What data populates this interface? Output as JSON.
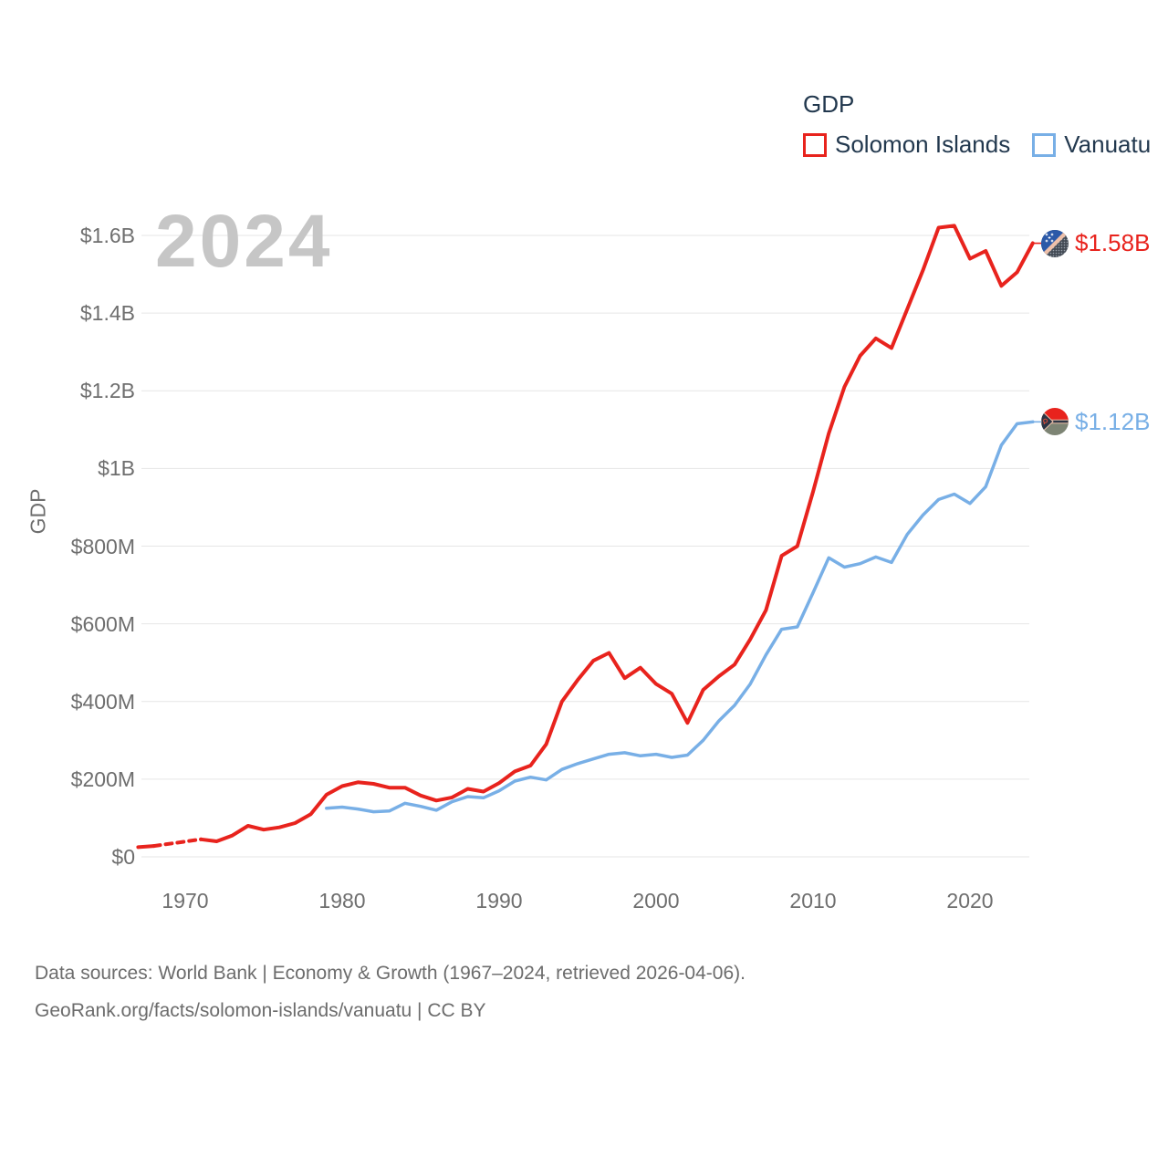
{
  "watermark": "2024",
  "legend": {
    "title": "GDP",
    "items": [
      {
        "label": "Solomon Islands",
        "color": "#e8231d"
      },
      {
        "label": "Vanuatu",
        "color": "#78afe6"
      }
    ]
  },
  "end_labels": [
    {
      "series": "Solomon Islands",
      "text": "$1.58B",
      "color": "#e8231d",
      "flag_icon": "solomon-islands-flag-icon"
    },
    {
      "series": "Vanuatu",
      "text": "$1.12B",
      "color": "#78afe6",
      "flag_icon": "vanuatu-flag-icon"
    }
  ],
  "footer": {
    "line1": "Data sources: World Bank | Economy & Growth (1967–2024, retrieved 2026-04-06).",
    "line2": "GeoRank.org/facts/solomon-islands/vanuatu | CC BY"
  },
  "chart_data": {
    "type": "line",
    "title": "GDP",
    "xlabel": "",
    "ylabel": "GDP",
    "units": "USD, values in millions",
    "grid": "horizontal",
    "legend_position": "top-right",
    "x_axis": {
      "range": [
        1967,
        2024
      ],
      "ticks": [
        1970,
        1980,
        1990,
        2000,
        2010,
        2020
      ]
    },
    "y_axis": {
      "range_millions": [
        0,
        1600
      ],
      "ticks": [
        {
          "value": 1600,
          "label": "$1.6B"
        },
        {
          "value": 1400,
          "label": "$1.4B"
        },
        {
          "value": 1200,
          "label": "$1.2B"
        },
        {
          "value": 1000,
          "label": "$1B"
        },
        {
          "value": 800,
          "label": "$800M"
        },
        {
          "value": 600,
          "label": "$600M"
        },
        {
          "value": 400,
          "label": "$400M"
        },
        {
          "value": 200,
          "label": "$200M"
        },
        {
          "value": 0,
          "label": "$0"
        }
      ]
    },
    "series": [
      {
        "name": "Solomon Islands",
        "color": "#e8231d",
        "stroke_width": 4,
        "end_value_label": "$1.58B",
        "note": "dashed segment = data gap 1969-1970",
        "segments": [
          {
            "style": "solid",
            "points": [
              [
                1967,
                25
              ],
              [
                1968,
                28
              ]
            ]
          },
          {
            "style": "dashed",
            "points": [
              [
                1968,
                28
              ],
              [
                1971,
                45
              ]
            ]
          },
          {
            "style": "solid",
            "points": [
              [
                1971,
                45
              ],
              [
                1972,
                40
              ],
              [
                1973,
                55
              ],
              [
                1974,
                80
              ],
              [
                1975,
                70
              ],
              [
                1976,
                76
              ],
              [
                1977,
                87
              ],
              [
                1978,
                110
              ],
              [
                1979,
                160
              ],
              [
                1980,
                182
              ],
              [
                1981,
                192
              ],
              [
                1982,
                188
              ],
              [
                1983,
                178
              ],
              [
                1984,
                178
              ],
              [
                1985,
                158
              ],
              [
                1986,
                145
              ],
              [
                1987,
                153
              ],
              [
                1988,
                175
              ],
              [
                1989,
                168
              ],
              [
                1990,
                190
              ],
              [
                1991,
                220
              ],
              [
                1992,
                235
              ],
              [
                1993,
                290
              ],
              [
                1994,
                400
              ],
              [
                1995,
                455
              ],
              [
                1996,
                505
              ],
              [
                1997,
                525
              ],
              [
                1998,
                460
              ],
              [
                1999,
                487
              ],
              [
                2000,
                445
              ],
              [
                2001,
                420
              ],
              [
                2002,
                345
              ],
              [
                2003,
                430
              ],
              [
                2004,
                465
              ],
              [
                2005,
                495
              ],
              [
                2006,
                560
              ],
              [
                2007,
                635
              ],
              [
                2008,
                775
              ],
              [
                2009,
                800
              ],
              [
                2010,
                940
              ],
              [
                2011,
                1090
              ],
              [
                2012,
                1210
              ],
              [
                2013,
                1290
              ],
              [
                2014,
                1335
              ],
              [
                2015,
                1310
              ],
              [
                2016,
                1410
              ],
              [
                2017,
                1510
              ],
              [
                2018,
                1620
              ],
              [
                2019,
                1625
              ],
              [
                2020,
                1540
              ],
              [
                2021,
                1560
              ],
              [
                2022,
                1470
              ],
              [
                2023,
                1505
              ],
              [
                2024,
                1580
              ]
            ]
          }
        ]
      },
      {
        "name": "Vanuatu",
        "color": "#78afe6",
        "stroke_width": 3.5,
        "end_value_label": "$1.12B",
        "segments": [
          {
            "style": "solid",
            "points": [
              [
                1979,
                125
              ],
              [
                1980,
                128
              ],
              [
                1981,
                123
              ],
              [
                1982,
                116
              ],
              [
                1983,
                118
              ],
              [
                1984,
                138
              ],
              [
                1985,
                130
              ],
              [
                1986,
                120
              ],
              [
                1987,
                142
              ],
              [
                1988,
                155
              ],
              [
                1989,
                152
              ],
              [
                1990,
                170
              ],
              [
                1991,
                195
              ],
              [
                1992,
                205
              ],
              [
                1993,
                198
              ],
              [
                1994,
                225
              ],
              [
                1995,
                240
              ],
              [
                1996,
                252
              ],
              [
                1997,
                264
              ],
              [
                1998,
                268
              ],
              [
                1999,
                260
              ],
              [
                2000,
                264
              ],
              [
                2001,
                256
              ],
              [
                2002,
                262
              ],
              [
                2003,
                300
              ],
              [
                2004,
                350
              ],
              [
                2005,
                390
              ],
              [
                2006,
                445
              ],
              [
                2007,
                520
              ],
              [
                2008,
                586
              ],
              [
                2009,
                592
              ],
              [
                2010,
                680
              ],
              [
                2011,
                770
              ],
              [
                2012,
                746
              ],
              [
                2013,
                755
              ],
              [
                2014,
                772
              ],
              [
                2015,
                758
              ],
              [
                2016,
                830
              ],
              [
                2017,
                880
              ],
              [
                2018,
                920
              ],
              [
                2019,
                934
              ],
              [
                2020,
                910
              ],
              [
                2021,
                953
              ],
              [
                2022,
                1060
              ],
              [
                2023,
                1115
              ],
              [
                2024,
                1120
              ]
            ]
          }
        ]
      }
    ]
  }
}
